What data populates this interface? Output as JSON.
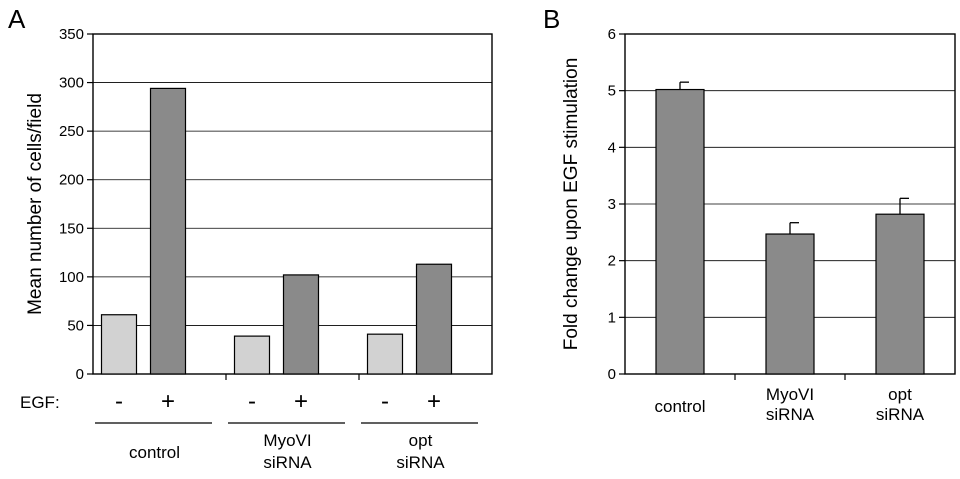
{
  "figure": {
    "panel_a_letter": "A",
    "panel_b_letter": "B",
    "egf_label": "EGF:"
  },
  "chart_data": [
    {
      "type": "bar",
      "panel": "A",
      "ylabel": "Mean number of cells/field",
      "ylim": [
        0,
        350
      ],
      "yticks": [
        0,
        50,
        100,
        150,
        200,
        250,
        300,
        350
      ],
      "grid": true,
      "groups": [
        {
          "lines": [
            "control"
          ]
        },
        {
          "lines": [
            "MyoVI",
            "siRNA"
          ]
        },
        {
          "lines": [
            "opt",
            "siRNA"
          ]
        }
      ],
      "conditions": [
        "-",
        "+"
      ],
      "colors": {
        "minus": "#d2d2d2",
        "plus": "#8a8a8a"
      },
      "values": [
        [
          61,
          294
        ],
        [
          39,
          102
        ],
        [
          41,
          113
        ]
      ]
    },
    {
      "type": "bar",
      "panel": "B",
      "ylabel": "Fold change upon EGF stimulation",
      "ylim": [
        0,
        6
      ],
      "yticks": [
        0,
        1,
        2,
        3,
        4,
        5,
        6
      ],
      "grid": true,
      "color": "#8a8a8a",
      "categories": [
        {
          "lines": [
            "control"
          ]
        },
        {
          "lines": [
            "MyoVI",
            "siRNA"
          ]
        },
        {
          "lines": [
            "opt",
            "siRNA"
          ]
        }
      ],
      "values": [
        5.02,
        2.47,
        2.82
      ],
      "errors": [
        0.13,
        0.2,
        0.28
      ]
    }
  ]
}
